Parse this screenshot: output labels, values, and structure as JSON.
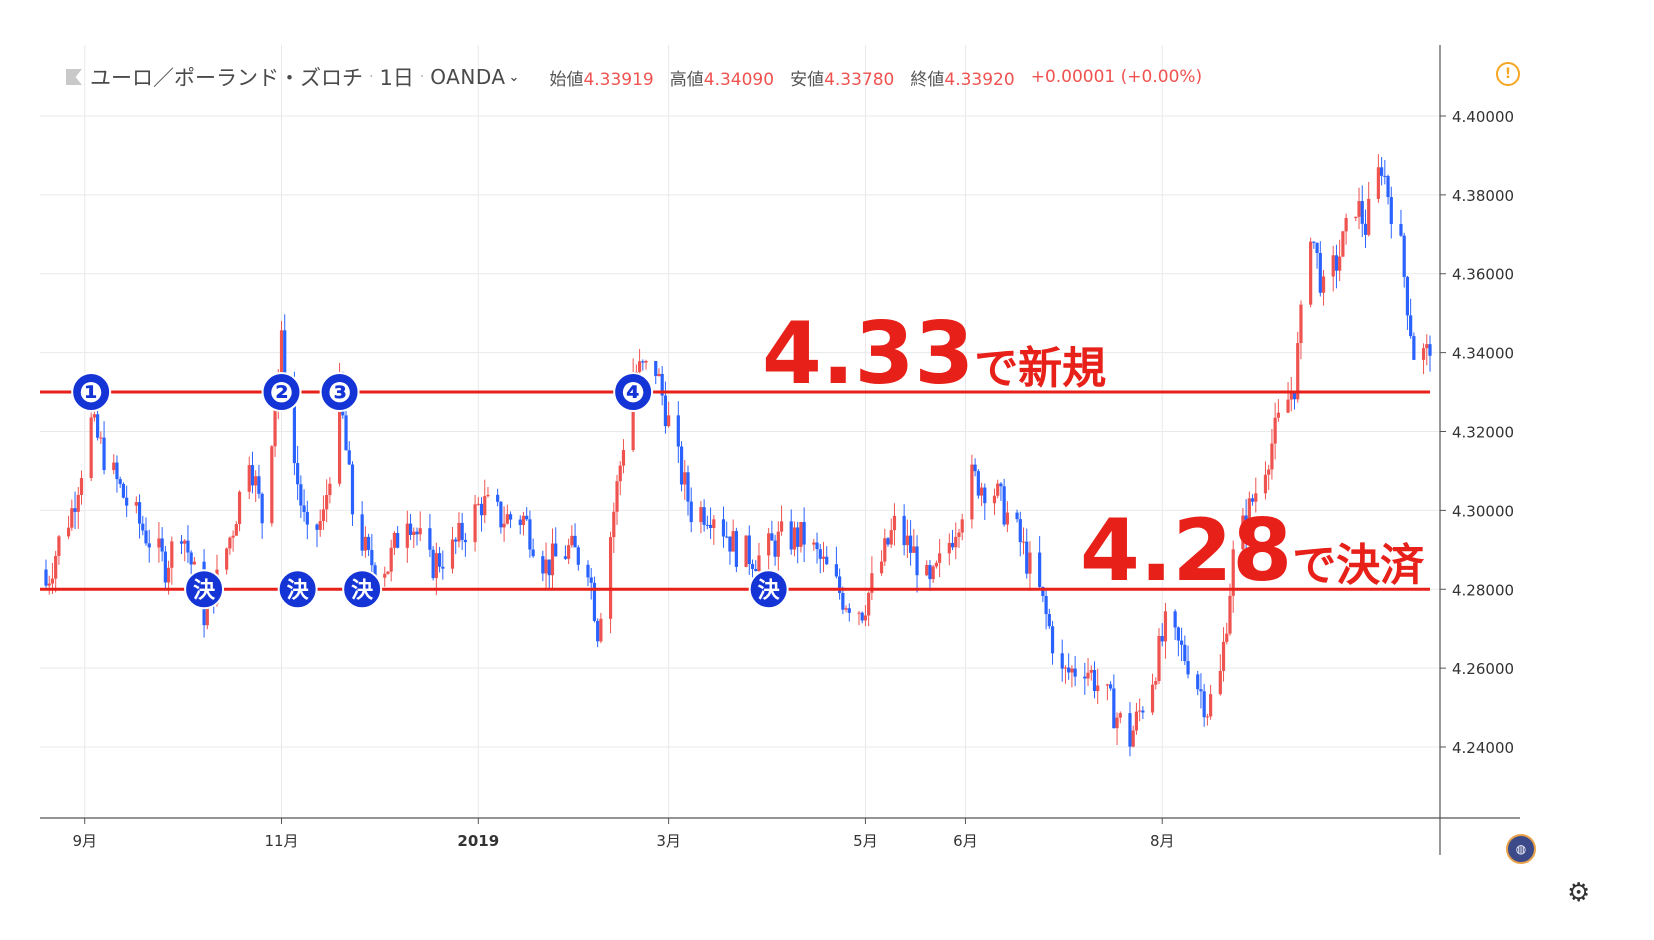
{
  "header": {
    "symbol": "ユーロ／ポーランド・ズロチ",
    "timeframe": "1日",
    "broker": "OANDA",
    "open_label": "始値",
    "open_value": "4.33919",
    "high_label": "高値",
    "high_value": "4.34090",
    "low_label": "安値",
    "low_value": "4.33780",
    "close_label": "終値",
    "close_value": "4.33920",
    "change": "+0.00001 (+0.00%)"
  },
  "colors": {
    "up": "#ef5350",
    "down": "#2962ff",
    "annotation_line": "#e8201a",
    "marker": "#1534d6",
    "grid": "#e9e9ea"
  },
  "icons": {
    "warning": "warning-icon",
    "settings": "gear-icon",
    "timezone": "globe-icon"
  },
  "annotations": {
    "entry_level": "4.33",
    "entry_text": "で新規",
    "exit_level": "4.28",
    "exit_text": "で決済",
    "entry_markers": [
      "❶",
      "❷",
      "❸",
      "❹"
    ],
    "exit_marker": "決"
  },
  "chart_data": {
    "type": "candlestick",
    "y_ticks": [
      "4.24000",
      "4.26000",
      "4.28000",
      "4.30000",
      "4.32000",
      "4.34000",
      "4.36000",
      "4.38000",
      "4.40000"
    ],
    "x_ticks": [
      "9月",
      "11月",
      "2019",
      "3月",
      "5月",
      "6月",
      "8月"
    ],
    "ylim": [
      4.222,
      4.418
    ],
    "horizontal_lines": [
      4.33,
      4.28
    ],
    "entry_marker_dates": [
      "2018-09-03",
      "2018-11-01",
      "2018-11-19",
      "2019-02-18"
    ],
    "exit_marker_dates": [
      "2018-10-08",
      "2018-11-06",
      "2018-11-26",
      "2019-04-01"
    ],
    "anchors": [
      [
        "2018-08-20",
        4.281
      ],
      [
        "2018-08-24",
        4.292
      ],
      [
        "2018-08-28",
        4.3
      ],
      [
        "2018-09-03",
        4.322
      ],
      [
        "2018-09-08",
        4.312
      ],
      [
        "2018-09-14",
        4.302
      ],
      [
        "2018-09-20",
        4.294
      ],
      [
        "2018-09-26",
        4.286
      ],
      [
        "2018-10-01",
        4.296
      ],
      [
        "2018-10-08",
        4.274
      ],
      [
        "2018-10-12",
        4.282
      ],
      [
        "2018-10-17",
        4.296
      ],
      [
        "2018-10-22",
        4.315
      ],
      [
        "2018-10-26",
        4.298
      ],
      [
        "2018-11-01",
        4.342
      ],
      [
        "2018-11-05",
        4.312
      ],
      [
        "2018-11-09",
        4.292
      ],
      [
        "2018-11-14",
        4.298
      ],
      [
        "2018-11-19",
        4.33
      ],
      [
        "2018-11-23",
        4.3
      ],
      [
        "2018-11-28",
        4.287
      ],
      [
        "2018-12-04",
        4.286
      ],
      [
        "2018-12-10",
        4.3
      ],
      [
        "2018-12-17",
        4.286
      ],
      [
        "2018-12-24",
        4.29
      ],
      [
        "2019-01-02",
        4.302
      ],
      [
        "2019-01-08",
        4.298
      ],
      [
        "2019-01-15",
        4.298
      ],
      [
        "2019-01-22",
        4.286
      ],
      [
        "2019-01-29",
        4.29
      ],
      [
        "2019-02-04",
        4.287
      ],
      [
        "2019-02-07",
        4.27
      ],
      [
        "2019-02-12",
        4.3
      ],
      [
        "2019-02-18",
        4.335
      ],
      [
        "2019-02-25",
        4.336
      ],
      [
        "2019-03-04",
        4.312
      ],
      [
        "2019-03-08",
        4.3
      ],
      [
        "2019-03-15",
        4.3
      ],
      [
        "2019-03-22",
        4.29
      ],
      [
        "2019-03-29",
        4.288
      ],
      [
        "2019-04-05",
        4.293
      ],
      [
        "2019-04-12",
        4.293
      ],
      [
        "2019-04-18",
        4.286
      ],
      [
        "2019-04-24",
        4.278
      ],
      [
        "2019-04-30",
        4.275
      ],
      [
        "2019-05-06",
        4.287
      ],
      [
        "2019-05-10",
        4.296
      ],
      [
        "2019-05-16",
        4.289
      ],
      [
        "2019-05-21",
        4.28
      ],
      [
        "2019-05-27",
        4.292
      ],
      [
        "2019-06-03",
        4.308
      ],
      [
        "2019-06-10",
        4.305
      ],
      [
        "2019-06-17",
        4.294
      ],
      [
        "2019-06-24",
        4.279
      ],
      [
        "2019-07-01",
        4.258
      ],
      [
        "2019-07-08",
        4.261
      ],
      [
        "2019-07-15",
        4.252
      ],
      [
        "2019-07-22",
        4.242
      ],
      [
        "2019-07-29",
        4.258
      ],
      [
        "2019-08-02",
        4.27
      ],
      [
        "2019-08-09",
        4.262
      ],
      [
        "2019-08-15",
        4.25
      ],
      [
        "2019-08-19",
        4.258
      ],
      [
        "2019-08-23",
        4.288
      ],
      [
        "2019-08-30",
        4.305
      ],
      [
        "2019-09-06",
        4.322
      ],
      [
        "2019-09-11",
        4.332
      ],
      [
        "2019-09-16",
        4.372
      ],
      [
        "2019-09-20",
        4.355
      ],
      [
        "2019-09-25",
        4.365
      ],
      [
        "2019-09-30",
        4.378
      ],
      [
        "2019-10-03",
        4.372
      ],
      [
        "2019-10-08",
        4.388
      ],
      [
        "2019-10-14",
        4.366
      ],
      [
        "2019-10-18",
        4.34
      ],
      [
        "2019-10-23",
        4.3392
      ]
    ]
  }
}
